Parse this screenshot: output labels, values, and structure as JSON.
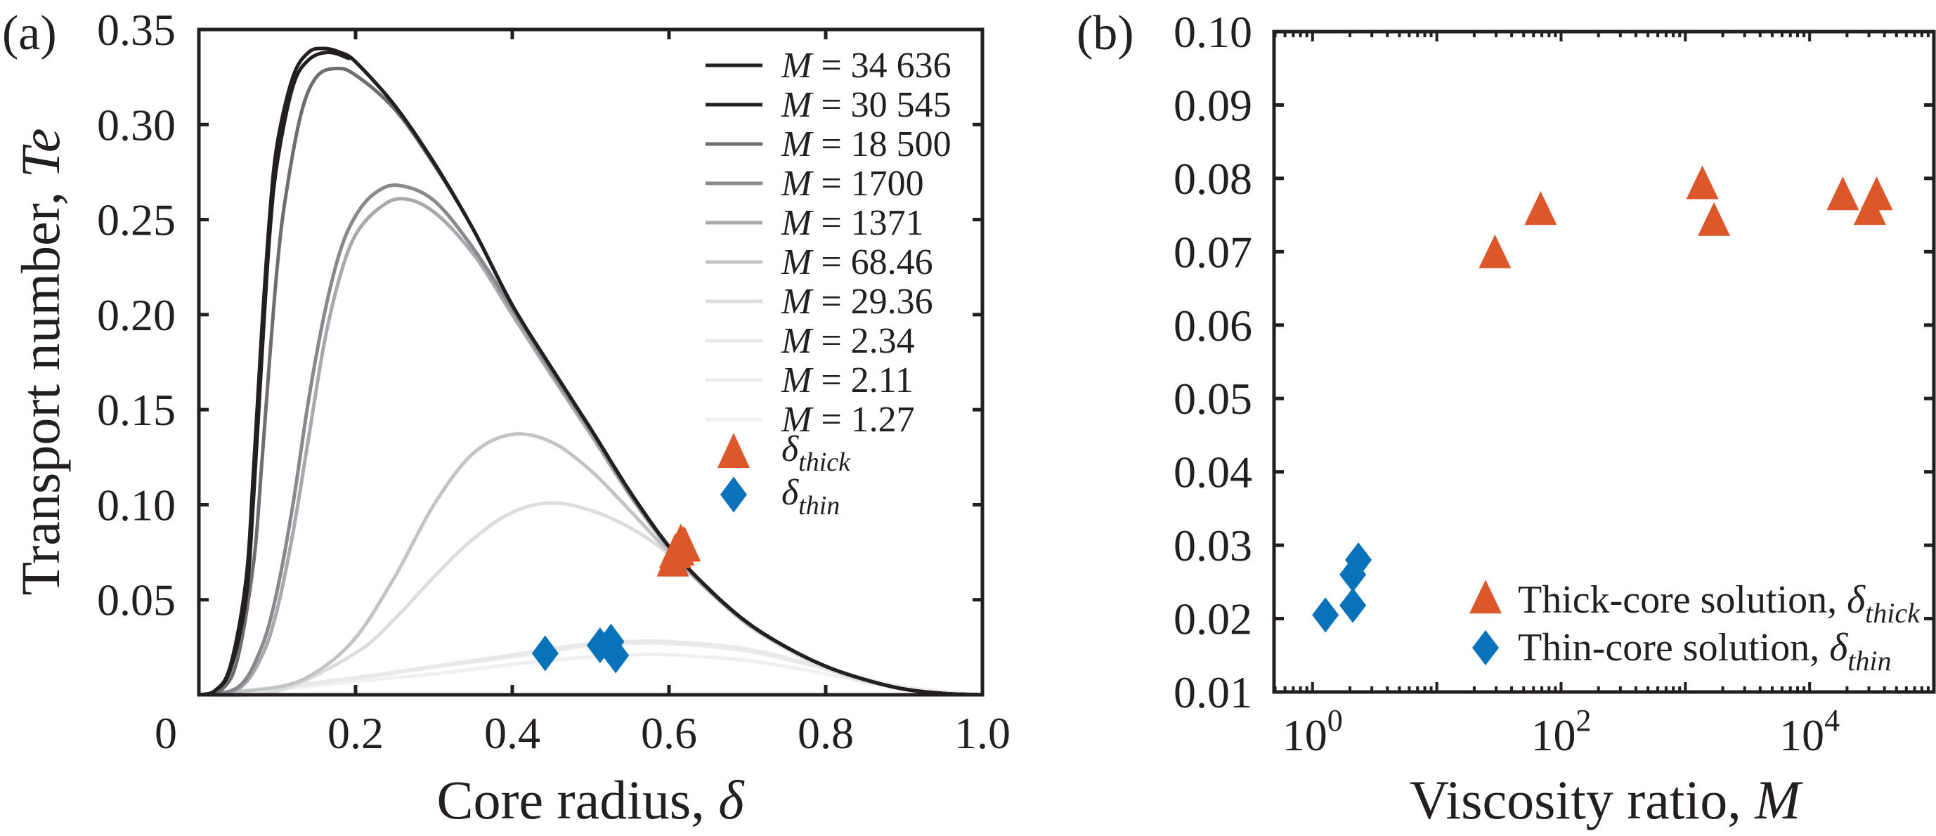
{
  "chart_data": [
    {
      "panel": "(a)",
      "type": "line",
      "xlabel": {
        "text": "Core radius, ",
        "var": "δ"
      },
      "ylabel": {
        "text": "Transport number, ",
        "var": "Te"
      },
      "xlim": [
        0,
        1.0
      ],
      "ylim": [
        0,
        0.35
      ],
      "xticks": [
        "0",
        "0.2",
        "0.4",
        "0.6",
        "0.8",
        "1.0"
      ],
      "xtick_values": [
        0,
        0.2,
        0.4,
        0.6,
        0.8,
        1.0
      ],
      "yticks": [
        "0.05",
        "0.10",
        "0.15",
        "0.20",
        "0.25",
        "0.30",
        "0.35"
      ],
      "ytick_values": [
        0.05,
        0.1,
        0.15,
        0.2,
        0.25,
        0.3,
        0.35
      ],
      "grid": false,
      "legend_position": "top-right",
      "series": [
        {
          "name": "M = 34 636",
          "color": "#231f20",
          "points": [
            [
              0,
              0
            ],
            [
              0.02,
              0.002
            ],
            [
              0.04,
              0.015
            ],
            [
              0.06,
              0.06
            ],
            [
              0.07,
              0.12
            ],
            [
              0.08,
              0.19
            ],
            [
              0.09,
              0.25
            ],
            [
              0.1,
              0.29
            ],
            [
              0.12,
              0.325
            ],
            [
              0.14,
              0.338
            ],
            [
              0.16,
              0.34
            ],
            [
              0.18,
              0.338
            ],
            [
              0.2,
              0.333
            ],
            [
              0.25,
              0.31
            ],
            [
              0.3,
              0.28
            ],
            [
              0.35,
              0.245
            ],
            [
              0.4,
              0.205
            ],
            [
              0.45,
              0.172
            ],
            [
              0.5,
              0.14
            ],
            [
              0.55,
              0.107
            ],
            [
              0.6,
              0.078
            ],
            [
              0.65,
              0.056
            ],
            [
              0.7,
              0.038
            ],
            [
              0.75,
              0.025
            ],
            [
              0.8,
              0.015
            ],
            [
              0.85,
              0.008
            ],
            [
              0.9,
              0.003
            ],
            [
              0.95,
              0.0007
            ],
            [
              1,
              0
            ]
          ]
        },
        {
          "name": "M = 30 545",
          "color": "#231f20",
          "points": [
            [
              0,
              0
            ],
            [
              0.02,
              0.002
            ],
            [
              0.04,
              0.013
            ],
            [
              0.06,
              0.05
            ],
            [
              0.07,
              0.105
            ],
            [
              0.08,
              0.175
            ],
            [
              0.09,
              0.24
            ],
            [
              0.1,
              0.28
            ],
            [
              0.12,
              0.32
            ],
            [
              0.14,
              0.334
            ],
            [
              0.165,
              0.338
            ],
            [
              0.19,
              0.335
            ],
            [
              0.2,
              0.333
            ],
            [
              0.25,
              0.31
            ],
            [
              0.3,
              0.28
            ],
            [
              0.35,
              0.245
            ],
            [
              0.4,
              0.205
            ],
            [
              0.45,
              0.172
            ],
            [
              0.5,
              0.14
            ],
            [
              0.55,
              0.107
            ],
            [
              0.6,
              0.078
            ],
            [
              0.65,
              0.056
            ],
            [
              0.7,
              0.038
            ],
            [
              0.75,
              0.025
            ],
            [
              0.8,
              0.015
            ],
            [
              0.85,
              0.008
            ],
            [
              0.9,
              0.003
            ],
            [
              0.95,
              0.0007
            ],
            [
              1,
              0
            ]
          ]
        },
        {
          "name": "M = 18 500",
          "color": "#6d6e71",
          "points": [
            [
              0,
              0
            ],
            [
              0.03,
              0.003
            ],
            [
              0.05,
              0.02
            ],
            [
              0.07,
              0.07
            ],
            [
              0.08,
              0.12
            ],
            [
              0.09,
              0.175
            ],
            [
              0.1,
              0.225
            ],
            [
              0.11,
              0.26
            ],
            [
              0.13,
              0.305
            ],
            [
              0.15,
              0.325
            ],
            [
              0.175,
              0.3295
            ],
            [
              0.2,
              0.326
            ],
            [
              0.25,
              0.308
            ],
            [
              0.3,
              0.279
            ],
            [
              0.35,
              0.245
            ],
            [
              0.4,
              0.205
            ],
            [
              0.45,
              0.172
            ],
            [
              0.5,
              0.14
            ],
            [
              0.55,
              0.107
            ],
            [
              0.6,
              0.078
            ],
            [
              0.65,
              0.056
            ],
            [
              0.7,
              0.038
            ],
            [
              0.75,
              0.025
            ],
            [
              0.8,
              0.015
            ],
            [
              0.85,
              0.008
            ],
            [
              0.9,
              0.003
            ],
            [
              0.95,
              0.0007
            ],
            [
              1,
              0
            ]
          ]
        },
        {
          "name": "M = 1700",
          "color": "#88898c",
          "points": [
            [
              0,
              0
            ],
            [
              0.05,
              0.004
            ],
            [
              0.08,
              0.025
            ],
            [
              0.1,
              0.055
            ],
            [
              0.12,
              0.1
            ],
            [
              0.14,
              0.155
            ],
            [
              0.16,
              0.2
            ],
            [
              0.18,
              0.233
            ],
            [
              0.2,
              0.252
            ],
            [
              0.225,
              0.264
            ],
            [
              0.255,
              0.268
            ],
            [
              0.3,
              0.26
            ],
            [
              0.35,
              0.235
            ],
            [
              0.4,
              0.203
            ],
            [
              0.45,
              0.17
            ],
            [
              0.5,
              0.139
            ],
            [
              0.55,
              0.106
            ],
            [
              0.6,
              0.078
            ],
            [
              0.65,
              0.056
            ],
            [
              0.7,
              0.038
            ],
            [
              0.75,
              0.025
            ],
            [
              0.8,
              0.015
            ],
            [
              0.85,
              0.008
            ],
            [
              0.9,
              0.003
            ],
            [
              0.95,
              0.0007
            ],
            [
              1,
              0
            ]
          ]
        },
        {
          "name": "M = 1371",
          "color": "#a7a9ac",
          "points": [
            [
              0,
              0
            ],
            [
              0.05,
              0.003
            ],
            [
              0.08,
              0.02
            ],
            [
              0.1,
              0.045
            ],
            [
              0.12,
              0.085
            ],
            [
              0.14,
              0.135
            ],
            [
              0.16,
              0.185
            ],
            [
              0.18,
              0.22
            ],
            [
              0.2,
              0.242
            ],
            [
              0.23,
              0.256
            ],
            [
              0.26,
              0.261
            ],
            [
              0.3,
              0.254
            ],
            [
              0.35,
              0.232
            ],
            [
              0.4,
              0.2
            ],
            [
              0.45,
              0.168
            ],
            [
              0.5,
              0.137
            ],
            [
              0.55,
              0.105
            ],
            [
              0.6,
              0.077
            ],
            [
              0.65,
              0.055
            ],
            [
              0.7,
              0.038
            ],
            [
              0.75,
              0.025
            ],
            [
              0.8,
              0.015
            ],
            [
              0.85,
              0.008
            ],
            [
              0.9,
              0.003
            ],
            [
              0.95,
              0.0007
            ],
            [
              1,
              0
            ]
          ]
        },
        {
          "name": "M = 68.46",
          "color": "#c2c3c5",
          "points": [
            [
              0,
              0
            ],
            [
              0.1,
              0.004
            ],
            [
              0.15,
              0.012
            ],
            [
              0.2,
              0.03
            ],
            [
              0.25,
              0.062
            ],
            [
              0.3,
              0.1
            ],
            [
              0.35,
              0.127
            ],
            [
              0.4,
              0.137
            ],
            [
              0.45,
              0.133
            ],
            [
              0.5,
              0.118
            ],
            [
              0.55,
              0.097
            ],
            [
              0.6,
              0.075
            ],
            [
              0.65,
              0.055
            ],
            [
              0.7,
              0.037
            ],
            [
              0.75,
              0.025
            ],
            [
              0.8,
              0.015
            ],
            [
              0.85,
              0.008
            ],
            [
              0.9,
              0.003
            ],
            [
              0.95,
              0.0007
            ],
            [
              1,
              0
            ]
          ]
        },
        {
          "name": "M = 29.36",
          "color": "#dcdddf",
          "points": [
            [
              0,
              0
            ],
            [
              0.1,
              0.002
            ],
            [
              0.2,
              0.022
            ],
            [
              0.25,
              0.04
            ],
            [
              0.3,
              0.062
            ],
            [
              0.35,
              0.082
            ],
            [
              0.4,
              0.096
            ],
            [
              0.45,
              0.101
            ],
            [
              0.5,
              0.097
            ],
            [
              0.55,
              0.088
            ],
            [
              0.6,
              0.074
            ],
            [
              0.65,
              0.055
            ],
            [
              0.7,
              0.037
            ],
            [
              0.75,
              0.024
            ],
            [
              0.8,
              0.014
            ],
            [
              0.85,
              0.007
            ],
            [
              0.9,
              0.003
            ],
            [
              0.95,
              0.0007
            ],
            [
              1,
              0
            ]
          ]
        },
        {
          "name": "M = 2.34",
          "color": "#e8e9ea",
          "points": [
            [
              0,
              0
            ],
            [
              0.1,
              0.004
            ],
            [
              0.2,
              0.009
            ],
            [
              0.3,
              0.015
            ],
            [
              0.4,
              0.021
            ],
            [
              0.5,
              0.027
            ],
            [
              0.55,
              0.028
            ],
            [
              0.6,
              0.028
            ],
            [
              0.7,
              0.024
            ],
            [
              0.8,
              0.014
            ],
            [
              0.9,
              0.004
            ],
            [
              1,
              0
            ]
          ]
        },
        {
          "name": "M = 2.11",
          "color": "#ececed",
          "points": [
            [
              0,
              0
            ],
            [
              0.1,
              0.004
            ],
            [
              0.2,
              0.0085
            ],
            [
              0.3,
              0.0145
            ],
            [
              0.4,
              0.02
            ],
            [
              0.5,
              0.026
            ],
            [
              0.55,
              0.027
            ],
            [
              0.6,
              0.027
            ],
            [
              0.7,
              0.023
            ],
            [
              0.8,
              0.0135
            ],
            [
              0.9,
              0.004
            ],
            [
              1,
              0
            ]
          ]
        },
        {
          "name": "M = 1.27",
          "color": "#f0f0f1",
          "points": [
            [
              0,
              0
            ],
            [
              0.1,
              0.003
            ],
            [
              0.2,
              0.007
            ],
            [
              0.3,
              0.011
            ],
            [
              0.4,
              0.016
            ],
            [
              0.5,
              0.02
            ],
            [
              0.55,
              0.021
            ],
            [
              0.6,
              0.021
            ],
            [
              0.7,
              0.018
            ],
            [
              0.8,
              0.011
            ],
            [
              0.9,
              0.003
            ],
            [
              1,
              0
            ]
          ]
        }
      ],
      "markers": {
        "thick": {
          "symbol": "δ",
          "sub": "thick",
          "color": "#dc582a",
          "shape": "triangle",
          "points": [
            [
              0.605,
              0.0696
            ],
            [
              0.612,
              0.0755
            ],
            [
              0.615,
              0.079
            ],
            [
              0.608,
              0.074
            ],
            [
              0.618,
              0.0775
            ],
            [
              0.612,
              0.0755
            ],
            [
              0.62,
              0.0775
            ]
          ]
        },
        "thin": {
          "symbol": "δ",
          "sub": "thin",
          "color": "#0872ba",
          "shape": "diamond",
          "points": [
            [
              0.442,
              0.0218
            ],
            [
              0.512,
              0.026
            ],
            [
              0.526,
              0.028
            ],
            [
              0.532,
              0.0207
            ]
          ]
        }
      }
    },
    {
      "panel": "(b)",
      "type": "scatter",
      "xlabel": {
        "text": "Viscosity ratio, ",
        "var": "M"
      },
      "xscale": "log",
      "xlim": [
        0.49,
        100000
      ],
      "ylim": [
        0.01,
        0.1
      ],
      "xticks": [
        {
          "base": "10",
          "exp": "0",
          "value": 1
        },
        {
          "base": "10",
          "exp": "2",
          "value": 100
        },
        {
          "base": "10",
          "exp": "4",
          "value": 10000
        }
      ],
      "yticks": [
        "0.01",
        "0.02",
        "0.03",
        "0.04",
        "0.05",
        "0.06",
        "0.07",
        "0.08",
        "0.09",
        "0.10"
      ],
      "ytick_values": [
        0.01,
        0.02,
        0.03,
        0.04,
        0.05,
        0.06,
        0.07,
        0.08,
        0.09,
        0.1
      ],
      "grid": false,
      "legend_position": "bottom-right",
      "series": [
        {
          "name": "Thick-core solution, ",
          "symbol": "δ",
          "sub": "thick",
          "color": "#dc582a",
          "shape": "triangle",
          "x": [
            29.36,
            68.46,
            1371,
            1700,
            18500,
            30545,
            34636
          ],
          "y": [
            0.0696,
            0.0755,
            0.079,
            0.074,
            0.0775,
            0.0755,
            0.0775
          ]
        },
        {
          "name": "Thin-core solution, ",
          "symbol": "δ",
          "sub": "thin",
          "color": "#0872ba",
          "shape": "diamond",
          "x": [
            1.27,
            2.11,
            2.11,
            2.34
          ],
          "y": [
            0.0205,
            0.0218,
            0.026,
            0.028
          ]
        }
      ]
    }
  ]
}
